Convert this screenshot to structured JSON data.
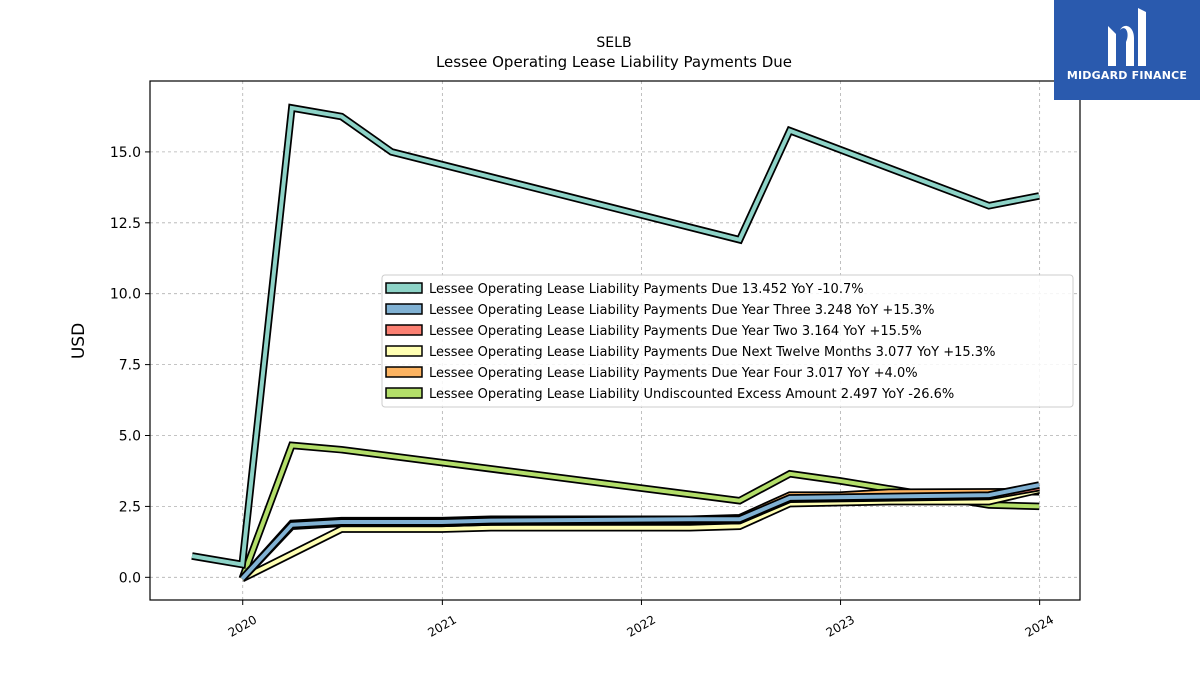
{
  "brand": {
    "name": "MIDGARD FINANCE",
    "bg_color": "#2a5aae"
  },
  "chart_data": {
    "type": "line",
    "title": "SELB",
    "subtitle": "Lessee Operating Lease Liability Payments Due",
    "ylabel": "USD",
    "xlabel": "",
    "ylim": [
      -0.8,
      17.5
    ],
    "xlim": [
      "2019-07-15",
      "2024-03-15"
    ],
    "yticks": [
      0.0,
      2.5,
      5.0,
      7.5,
      10.0,
      12.5,
      15.0
    ],
    "ytick_labels": [
      "0.0",
      "2.5",
      "5.0",
      "7.5",
      "10.0",
      "12.5",
      "15.0"
    ],
    "xticks": [
      "2020-01-01",
      "2021-01-01",
      "2022-01-01",
      "2023-01-01",
      "2024-01-01"
    ],
    "xtick_labels": [
      "2020",
      "2021",
      "2022",
      "2023",
      "2024"
    ],
    "grid": true,
    "legend_position": "center-right",
    "series": [
      {
        "name": "Lessee Operating Lease Liability Payments Due",
        "legend_value": "13.452 YoY -10.7%",
        "color": "#8dd3c7",
        "points": [
          [
            "2019-09-30",
            0.75
          ],
          [
            "2019-12-31",
            0.45
          ],
          [
            "2020-03-31",
            16.55
          ],
          [
            "2020-06-30",
            16.25
          ],
          [
            "2020-09-30",
            15.0
          ],
          [
            "2022-06-30",
            11.9
          ],
          [
            "2022-09-30",
            15.75
          ],
          [
            "2023-09-30",
            13.1
          ],
          [
            "2023-12-31",
            13.45
          ]
        ]
      },
      {
        "name": "Lessee Operating Lease Liability Payments Due Year Three",
        "legend_value": "3.248 YoY +15.3%",
        "color": "#80b1d3",
        "points": [
          [
            "2019-12-31",
            -0.05
          ],
          [
            "2020-03-31",
            1.85
          ],
          [
            "2020-06-30",
            1.95
          ],
          [
            "2020-12-31",
            1.95
          ],
          [
            "2021-03-31",
            2.0
          ],
          [
            "2022-03-31",
            2.05
          ],
          [
            "2022-06-30",
            2.05
          ],
          [
            "2022-09-30",
            2.8
          ],
          [
            "2023-09-30",
            2.9
          ],
          [
            "2023-12-31",
            3.25
          ]
        ]
      },
      {
        "name": "Lessee Operating Lease Liability Payments Due Year Two",
        "legend_value": "3.164 YoY +15.5%",
        "color": "#fb8072",
        "points": [
          [
            "2019-12-31",
            -0.05
          ],
          [
            "2020-03-31",
            1.8
          ],
          [
            "2020-06-30",
            1.9
          ],
          [
            "2020-12-31",
            1.9
          ],
          [
            "2021-03-31",
            1.95
          ],
          [
            "2022-03-31",
            2.0
          ],
          [
            "2022-06-30",
            2.0
          ],
          [
            "2022-09-30",
            2.75
          ],
          [
            "2023-09-30",
            2.85
          ],
          [
            "2023-12-31",
            3.16
          ]
        ]
      },
      {
        "name": "Lessee Operating Lease Liability Payments Due Next Twelve Months",
        "legend_value": "3.077 YoY +15.3%",
        "color": "#ffffb3",
        "points": [
          [
            "2019-12-31",
            -0.05
          ],
          [
            "2020-06-30",
            1.7
          ],
          [
            "2020-12-31",
            1.7
          ],
          [
            "2021-03-31",
            1.75
          ],
          [
            "2022-03-31",
            1.75
          ],
          [
            "2022-06-30",
            1.8
          ],
          [
            "2022-09-30",
            2.6
          ],
          [
            "2023-03-31",
            2.67
          ],
          [
            "2023-09-30",
            2.67
          ],
          [
            "2023-12-31",
            3.08
          ]
        ]
      },
      {
        "name": "Lessee Operating Lease Liability Payments Due Year Four",
        "legend_value": "3.017 YoY +4.0%",
        "color": "#fdb462",
        "points": [
          [
            "2019-12-31",
            -0.05
          ],
          [
            "2020-03-31",
            1.9
          ],
          [
            "2020-06-30",
            2.0
          ],
          [
            "2020-12-31",
            2.0
          ],
          [
            "2021-03-31",
            2.05
          ],
          [
            "2022-03-31",
            2.05
          ],
          [
            "2022-06-30",
            2.1
          ],
          [
            "2022-09-30",
            2.9
          ],
          [
            "2022-12-31",
            2.9
          ],
          [
            "2023-03-31",
            3.0
          ],
          [
            "2023-12-31",
            3.02
          ]
        ]
      },
      {
        "name": "Lessee Operating Lease Liability Undiscounted Excess Amount",
        "legend_value": "2.497 YoY -26.6%",
        "color": "#b3de69",
        "points": [
          [
            "2019-12-31",
            -0.05
          ],
          [
            "2020-03-31",
            4.65
          ],
          [
            "2020-06-30",
            4.5
          ],
          [
            "2022-06-30",
            2.7
          ],
          [
            "2022-09-30",
            3.65
          ],
          [
            "2022-12-31",
            3.4
          ],
          [
            "2023-09-30",
            2.55
          ],
          [
            "2023-12-31",
            2.5
          ]
        ]
      }
    ]
  }
}
